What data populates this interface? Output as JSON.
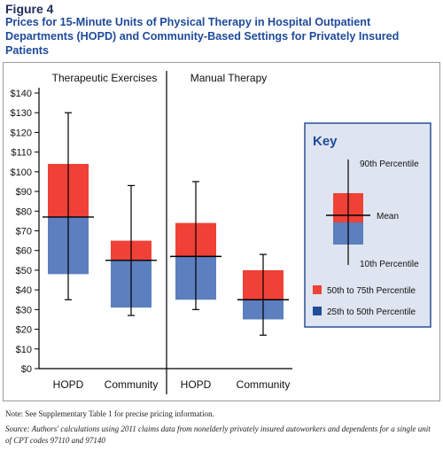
{
  "figure_label": "Figure 4",
  "title": "Prices for 15-Minute Units of Physical Therapy in Hospital Outpatient Departments (HOPD) and Community-Based Settings for Privately Insured Patients",
  "note": "Note: See Supplementary Table 1 for precise pricing information.",
  "source": "Source: Authors' calculations using 2011 claims data from nonelderly privately insured autoworkers and dependents for a single unit of CPT codes 97110 and 97140",
  "colors": {
    "upper_box": "#ef4136",
    "lower_box": "#5b7fbf",
    "title": "#1e4a9a",
    "key_bg": "#dfe4f1",
    "key_border": "#2a4f96"
  },
  "chart_data": {
    "type": "boxplot",
    "y_ticks": [
      "$0",
      "$10",
      "$20",
      "$30",
      "$40",
      "$50",
      "$60",
      "$70",
      "$80",
      "$90",
      "$100",
      "$110",
      "$120",
      "$130",
      "$140"
    ],
    "ylim": [
      0,
      140
    ],
    "grid": false,
    "panels": [
      {
        "name": "Therapeutic Exercises",
        "boxes": [
          {
            "category": "HOPD",
            "p10": 35,
            "p25": 48,
            "p50": 77,
            "p75": 104,
            "p90": 130
          },
          {
            "category": "Community",
            "p10": 27,
            "p25": 31,
            "p50": 55,
            "p75": 65,
            "p90": 93
          }
        ]
      },
      {
        "name": "Manual Therapy",
        "boxes": [
          {
            "category": "HOPD",
            "p10": 30,
            "p25": 35,
            "p50": 57,
            "p75": 74,
            "p90": 95
          },
          {
            "category": "Community",
            "p10": 17,
            "p25": 25,
            "p50": 35,
            "p75": 50,
            "p90": 58
          }
        ]
      }
    ]
  },
  "key": {
    "title": "Key",
    "p90_label": "90th Percentile",
    "mean_label": "Mean",
    "p10_label": "10th Percentile",
    "legend": [
      {
        "label": "50th to 75th Percentile",
        "color": "#ef4136"
      },
      {
        "label": "25th to 50th Percentile",
        "color": "#1f4e9b"
      }
    ]
  }
}
